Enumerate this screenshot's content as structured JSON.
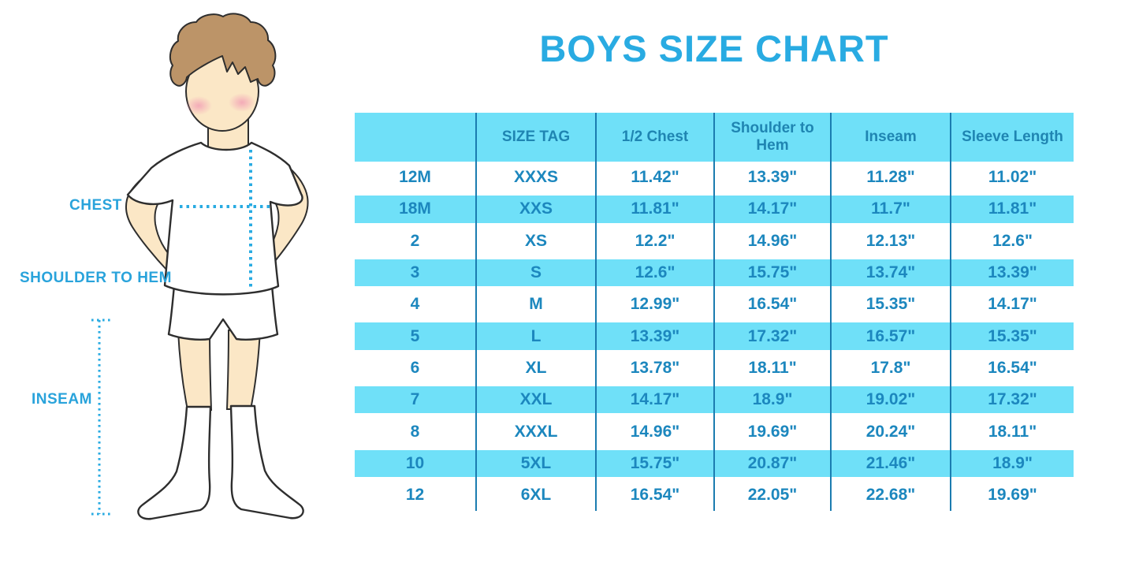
{
  "chart_data": {
    "type": "table",
    "title": "BOYS SIZE CHART",
    "columns": [
      "",
      "SIZE TAG",
      "1/2 Chest",
      "Shoulder to Hem",
      "Inseam",
      "Sleeve Length"
    ],
    "rows": [
      [
        "12M",
        "XXXS",
        "11.42\"",
        "13.39\"",
        "11.28\"",
        "11.02\""
      ],
      [
        "18M",
        "XXS",
        "11.81\"",
        "14.17\"",
        "11.7\"",
        "11.81\""
      ],
      [
        "2",
        "XS",
        "12.2\"",
        "14.96\"",
        "12.13\"",
        "12.6\""
      ],
      [
        "3",
        "S",
        "12.6\"",
        "15.75\"",
        "13.74\"",
        "13.39\""
      ],
      [
        "4",
        "M",
        "12.99\"",
        "16.54\"",
        "15.35\"",
        "14.17\""
      ],
      [
        "5",
        "L",
        "13.39\"",
        "17.32\"",
        "16.57\"",
        "15.35\""
      ],
      [
        "6",
        "XL",
        "13.78\"",
        "18.11\"",
        "17.8\"",
        "16.54\""
      ],
      [
        "7",
        "XXL",
        "14.17\"",
        "18.9\"",
        "19.02\"",
        "17.32\""
      ],
      [
        "8",
        "XXXL",
        "14.96\"",
        "19.69\"",
        "20.24\"",
        "18.11\""
      ],
      [
        "10",
        "5XL",
        "15.75\"",
        "20.87\"",
        "21.46\"",
        "18.9\""
      ],
      [
        "12",
        "6XL",
        "16.54\"",
        "22.05\"",
        "22.68\"",
        "19.69\""
      ]
    ],
    "row_striping": "alternating white and cyan, first data row white",
    "legend_position": "none",
    "grid": "vertical column dividers only"
  },
  "figure": {
    "labels": {
      "chest": "CHEST",
      "shoulder_to_hem": "SHOULDER TO HEM",
      "inseam": "INSEAM"
    }
  },
  "colors": {
    "title_blue": "#29ABE2",
    "label_blue": "#29A3DB",
    "stripe_cyan": "#6FE0F8",
    "divider_blue": "#1B7CB0",
    "header_text_blue": "#1F85B2",
    "table_text_blue": "#1C87BE",
    "skin": "#FBE7C6",
    "hair": "#BC9468",
    "cheek_pink": "#F2A0B5"
  }
}
